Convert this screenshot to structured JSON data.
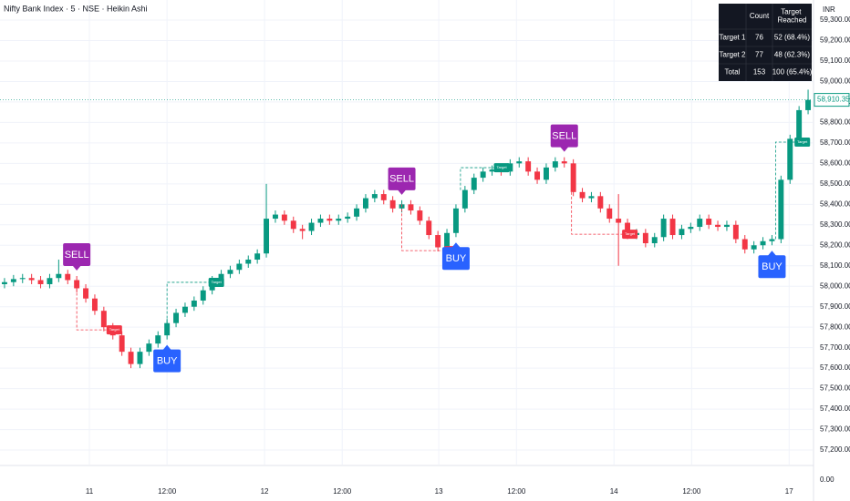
{
  "chart_data": {
    "type": "candlestick",
    "title": "Nifty Bank Index · 5 · NSE · Heikin Ashi",
    "currency": "INR",
    "xlim": [
      -0.5,
      89.5
    ],
    "xticks": [
      {
        "value": 9.4,
        "label": "11"
      },
      {
        "value": 18,
        "label": "12:00"
      },
      {
        "value": 28.8,
        "label": "12"
      },
      {
        "value": 37.4,
        "label": "12:00"
      },
      {
        "value": 48.1,
        "label": "13"
      },
      {
        "value": 56.7,
        "label": "12:00"
      },
      {
        "value": 67.5,
        "label": "14"
      },
      {
        "value": 76.1,
        "label": "12:00"
      },
      {
        "value": 86.9,
        "label": "17"
      }
    ],
    "ylim": [
      57129,
      59398
    ],
    "yticks": [
      {
        "value": 59300,
        "label": "59,300.00"
      },
      {
        "value": 59200,
        "label": "59,200.00"
      },
      {
        "value": 59100,
        "label": "59,100.00"
      },
      {
        "value": 59000,
        "label": "59,000.00"
      },
      {
        "value": 58900,
        "label": "58,900.00"
      },
      {
        "value": 58800,
        "label": "58,800.00"
      },
      {
        "value": 58700,
        "label": "58,700.00"
      },
      {
        "value": 58600,
        "label": "58,600.00"
      },
      {
        "value": 58500,
        "label": "58,500.00"
      },
      {
        "value": 58400,
        "label": "58,400.00"
      },
      {
        "value": 58300,
        "label": "58,300.00"
      },
      {
        "value": 58200,
        "label": "58,200.00"
      },
      {
        "value": 58100,
        "label": "58,100.00"
      },
      {
        "value": 58000,
        "label": "58,000.00"
      },
      {
        "value": 57900,
        "label": "57,900.00"
      },
      {
        "value": 57800,
        "label": "57,800.00"
      },
      {
        "value": 57700,
        "label": "57,700.00"
      },
      {
        "value": 57600,
        "label": "57,600.00"
      },
      {
        "value": 57500,
        "label": "57,500.00"
      },
      {
        "value": 57400,
        "label": "57,400.00"
      },
      {
        "value": 57300,
        "label": "57,300.00"
      },
      {
        "value": 57200,
        "label": "57,200.00"
      }
    ],
    "bottom_tick": {
      "value": 0,
      "label": "0.00"
    },
    "last_price": {
      "value": 58910.35,
      "label": "58,910.35"
    },
    "up_color": "#089981",
    "down_color": "#f23645",
    "open": [
      58010,
      58020,
      58035,
      58040,
      58030,
      58010,
      58040,
      58060,
      58030,
      57990,
      57940,
      57880,
      57800,
      57760,
      57680,
      57620,
      57680,
      57720,
      57760,
      57820,
      57870,
      57900,
      57930,
      57980,
      58030,
      58060,
      58080,
      58110,
      58130,
      58160,
      58330,
      58350,
      58320,
      58280,
      58270,
      58310,
      58330,
      58320,
      58330,
      58340,
      58380,
      58430,
      58450,
      58420,
      58380,
      58400,
      58370,
      58320,
      58250,
      58190,
      58260,
      58380,
      58470,
      58530,
      58560,
      58570,
      58560,
      58600,
      58610,
      58560,
      58520,
      58580,
      58610,
      58600,
      58460,
      58430,
      58440,
      58380,
      58330,
      58310,
      58250,
      58260,
      58210,
      58240,
      58330,
      58250,
      58280,
      58290,
      58330,
      58300,
      58290,
      58300,
      58230,
      58180,
      58200,
      58220,
      58230,
      58520,
      58720,
      58860
    ],
    "high": [
      58040,
      58055,
      58060,
      58060,
      58050,
      58060,
      58130,
      58080,
      58050,
      58010,
      57960,
      57900,
      57820,
      57780,
      57700,
      57700,
      57740,
      57780,
      57840,
      57890,
      57920,
      57950,
      58000,
      58050,
      58080,
      58100,
      58130,
      58150,
      58180,
      58500,
      58370,
      58370,
      58340,
      58300,
      58330,
      58350,
      58350,
      58350,
      58360,
      58400,
      58450,
      58470,
      58470,
      58440,
      58420,
      58420,
      58390,
      58340,
      58270,
      58280,
      58400,
      58490,
      58550,
      58580,
      58590,
      58590,
      58620,
      58630,
      58630,
      58580,
      58600,
      58630,
      58630,
      58620,
      58480,
      58460,
      58460,
      58400,
      58450,
      58330,
      58280,
      58280,
      58260,
      58350,
      58350,
      58300,
      58310,
      58350,
      58350,
      58320,
      58320,
      58320,
      58250,
      58220,
      58240,
      58250,
      58540,
      58740,
      58880,
      58960
    ],
    "low": [
      57990,
      58000,
      58015,
      58010,
      57990,
      57990,
      58020,
      58010,
      57970,
      57920,
      57860,
      57780,
      57740,
      57660,
      57600,
      57600,
      57660,
      57700,
      57740,
      57800,
      57850,
      57880,
      57910,
      57960,
      58010,
      58040,
      58060,
      58090,
      58110,
      58140,
      58310,
      58300,
      58260,
      58230,
      58250,
      58290,
      58300,
      58300,
      58310,
      58320,
      58360,
      58410,
      58400,
      58360,
      58360,
      58350,
      58300,
      58230,
      58170,
      58170,
      58240,
      58360,
      58450,
      58510,
      58540,
      58540,
      58540,
      58580,
      58540,
      58500,
      58500,
      58560,
      58580,
      58440,
      58410,
      58410,
      58360,
      58310,
      58100,
      58230,
      58230,
      58190,
      58190,
      58220,
      58230,
      58230,
      58260,
      58270,
      58280,
      58270,
      58270,
      58210,
      58160,
      58160,
      58180,
      58200,
      58210,
      58500,
      58700,
      58840
    ],
    "close": [
      58020,
      58035,
      58040,
      58030,
      58010,
      58040,
      58060,
      58030,
      57990,
      57940,
      57880,
      57800,
      57760,
      57680,
      57620,
      57680,
      57720,
      57760,
      57820,
      57870,
      57900,
      57930,
      57980,
      58030,
      58060,
      58080,
      58110,
      58130,
      58160,
      58330,
      58350,
      58320,
      58280,
      58270,
      58310,
      58330,
      58320,
      58330,
      58340,
      58380,
      58430,
      58450,
      58420,
      58380,
      58400,
      58370,
      58320,
      58250,
      58190,
      58260,
      58380,
      58470,
      58530,
      58560,
      58570,
      58560,
      58600,
      58610,
      58560,
      58520,
      58580,
      58610,
      58600,
      58460,
      58430,
      58440,
      58380,
      58330,
      58310,
      58250,
      58260,
      58210,
      58240,
      58330,
      58250,
      58280,
      58290,
      58330,
      58300,
      58290,
      58300,
      58230,
      58180,
      58200,
      58220,
      58230,
      58520,
      58720,
      58860,
      58910
    ],
    "signals": [
      {
        "label": "SELL",
        "index": 8
      },
      {
        "label": "BUY",
        "index": 18
      },
      {
        "label": "SELL",
        "index": 44
      },
      {
        "label": "BUY",
        "index": 50
      },
      {
        "label": "SELL",
        "index": 62
      },
      {
        "label": "BUY",
        "index": 85
      }
    ],
    "targets": [
      {
        "label": "Target",
        "from": 8,
        "to": 11.4,
        "price": 57787,
        "side": "sell"
      },
      {
        "label": "Target",
        "from": 18,
        "to": 22.7,
        "price": 58019,
        "side": "buy"
      },
      {
        "label": "Target",
        "from": 44,
        "to": 48.8,
        "price": 58174,
        "side": "sell"
      },
      {
        "label": "Target",
        "from": 50.5,
        "to": 54.3,
        "price": 58579,
        "side": "buy"
      },
      {
        "label": "Target",
        "from": 62.8,
        "to": 68.5,
        "price": 58254,
        "side": "sell"
      },
      {
        "label": "Target",
        "from": 85.4,
        "to": 87.6,
        "price": 58704,
        "side": "buy"
      }
    ]
  },
  "table": {
    "header": [
      "",
      "Count",
      "Target Reached"
    ],
    "rows": [
      [
        "Target 1",
        "76",
        "52 (68.4%)"
      ],
      [
        "Target 2",
        "77",
        "48 (62.3%)"
      ],
      [
        "Total",
        "153",
        "100 (65.4%)"
      ]
    ]
  }
}
